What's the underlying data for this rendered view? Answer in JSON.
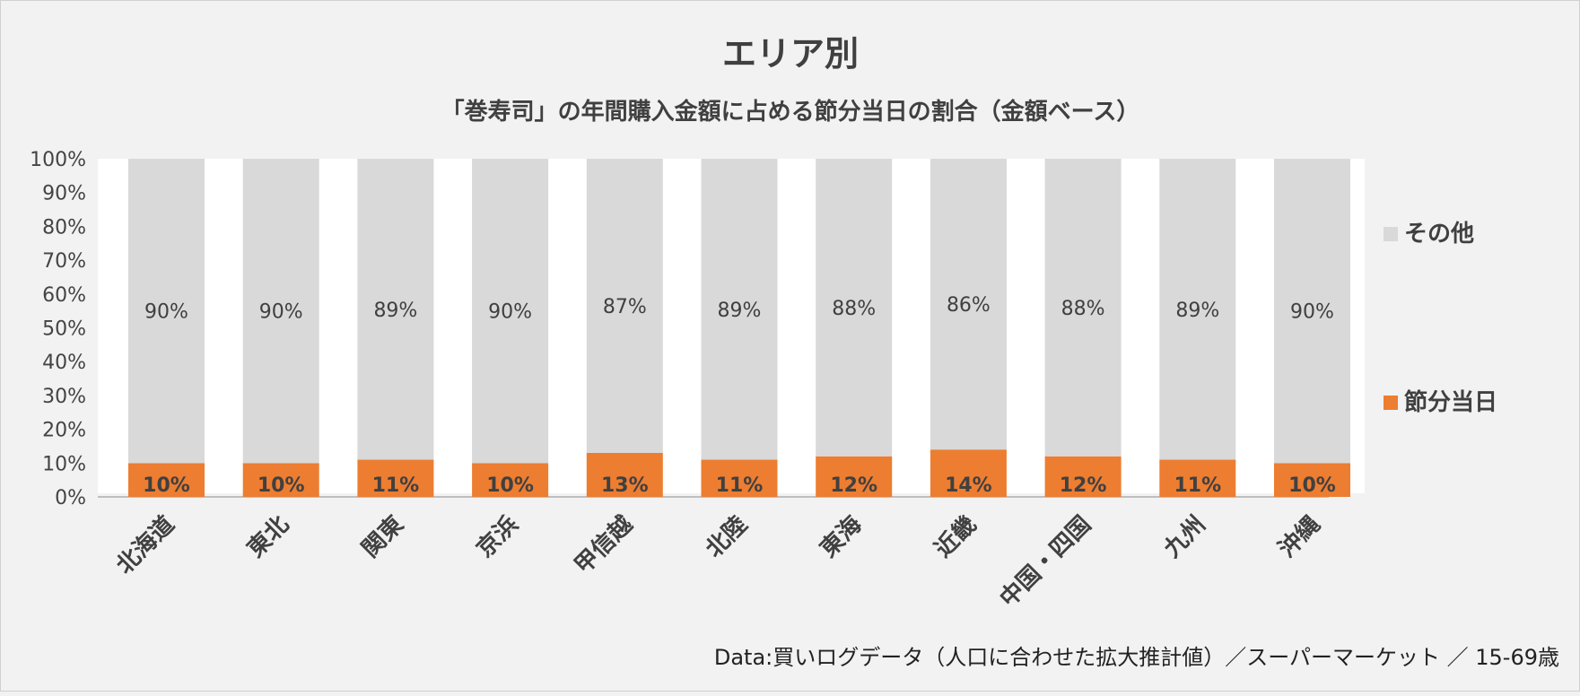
{
  "chart_data": {
    "type": "bar",
    "stacked": true,
    "title": "エリア別",
    "subtitle": "「巻寿司」の年間購入金額に占める節分当日の割合（金額ベース）",
    "categories": [
      "北海道",
      "東北",
      "関東",
      "京浜",
      "甲信越",
      "北陸",
      "東海",
      "近畿",
      "中国・四国",
      "九州",
      "沖縄"
    ],
    "series": [
      {
        "name": "節分当日",
        "values": [
          10,
          10,
          11,
          10,
          13,
          11,
          12,
          14,
          12,
          11,
          10
        ],
        "color": "#ed7d31",
        "labels": [
          "10%",
          "10%",
          "11%",
          "10%",
          "13%",
          "11%",
          "12%",
          "14%",
          "12%",
          "11%",
          "10%"
        ]
      },
      {
        "name": "その他",
        "values": [
          90,
          90,
          89,
          90,
          87,
          89,
          88,
          86,
          88,
          89,
          90
        ],
        "color": "#d9d9d9",
        "labels": [
          "90%",
          "90%",
          "89%",
          "90%",
          "87%",
          "89%",
          "88%",
          "86%",
          "88%",
          "89%",
          "90%"
        ]
      }
    ],
    "ylim": [
      0,
      100
    ],
    "yticks": [
      "0%",
      "10%",
      "20%",
      "30%",
      "40%",
      "50%",
      "60%",
      "70%",
      "80%",
      "90%",
      "100%"
    ],
    "legend": "right",
    "grid": false
  },
  "source_note": "Data:買いログデータ（人口に合わせた拡大推計値）／スーパーマーケット ／ 15-69歳"
}
